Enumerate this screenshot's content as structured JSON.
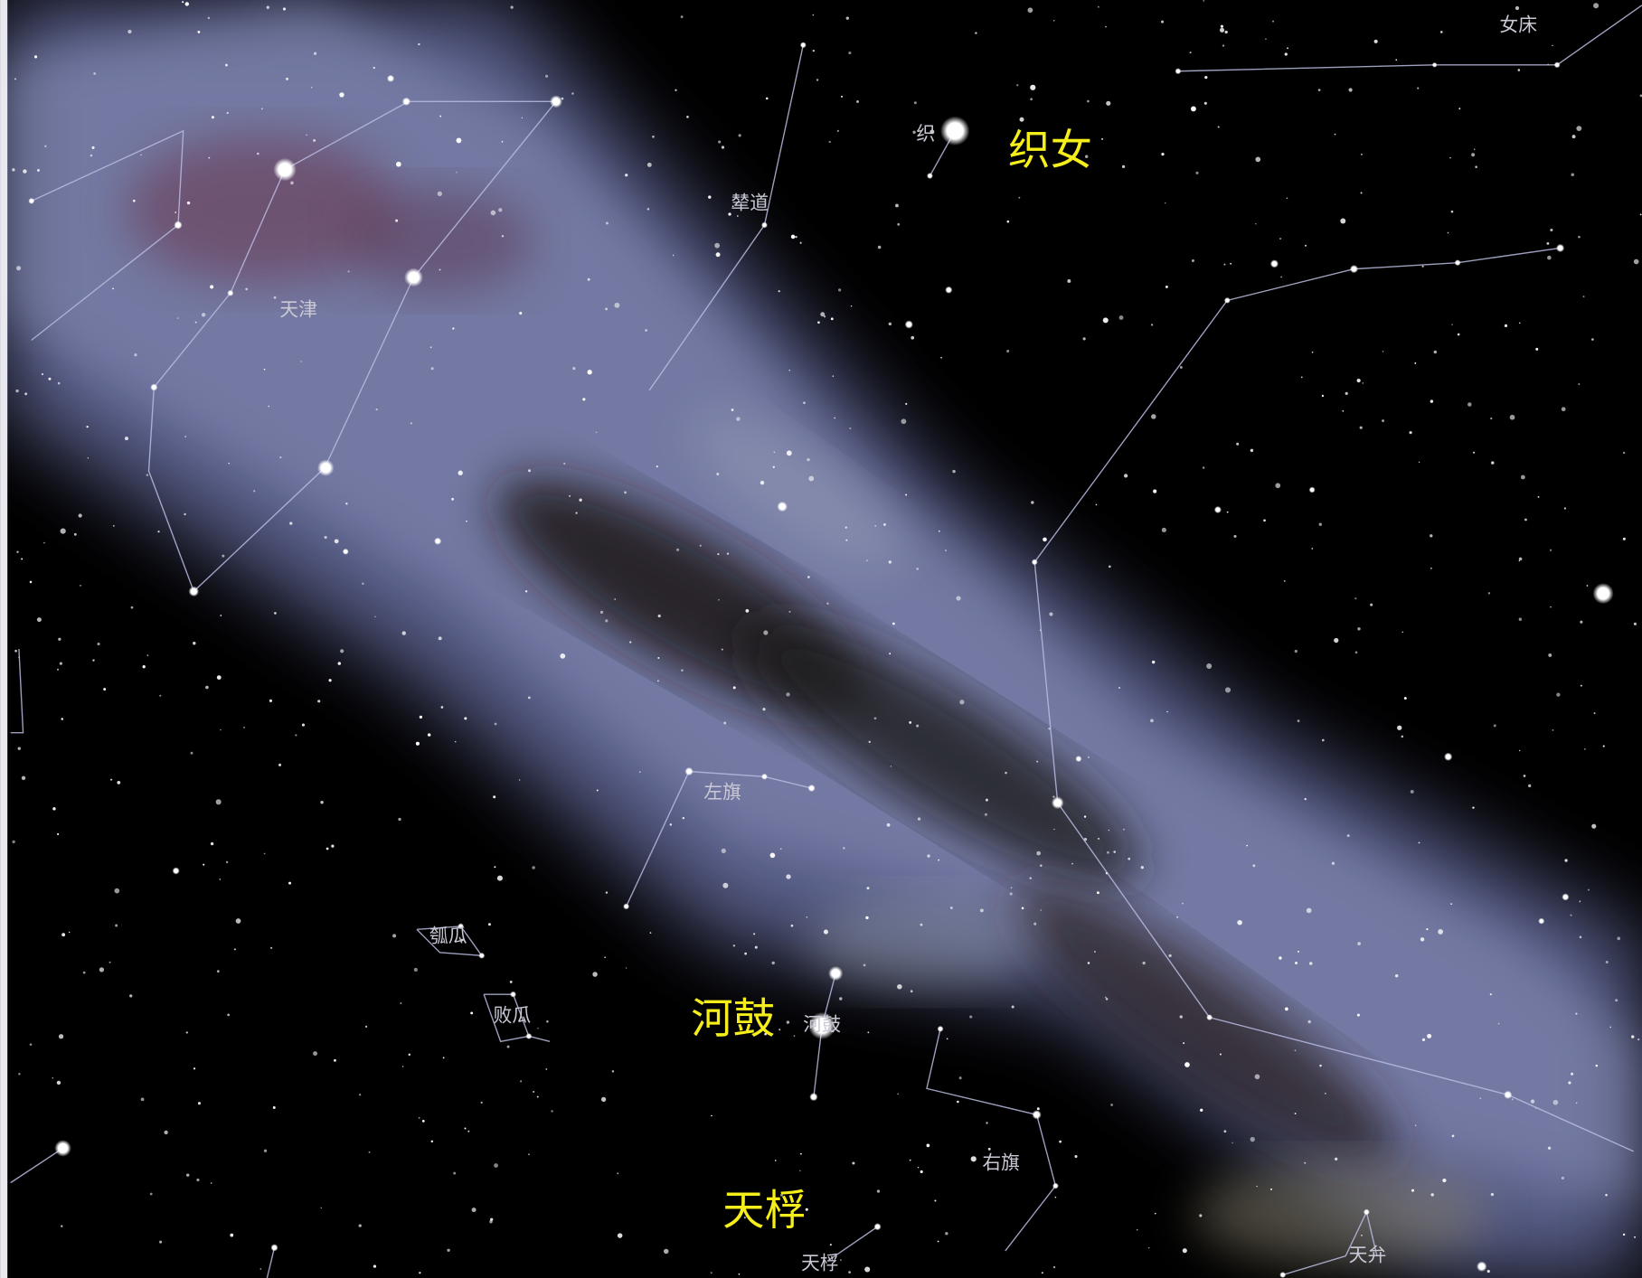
{
  "major_labels": [
    "织女",
    "河鼓",
    "天桴"
  ],
  "constellation_labels": [
    "女床",
    "织",
    "辇道",
    "天津",
    "左旗",
    "瓠瓜",
    "败瓜",
    "河鼓",
    "右旗",
    "天桴",
    "天弁"
  ]
}
